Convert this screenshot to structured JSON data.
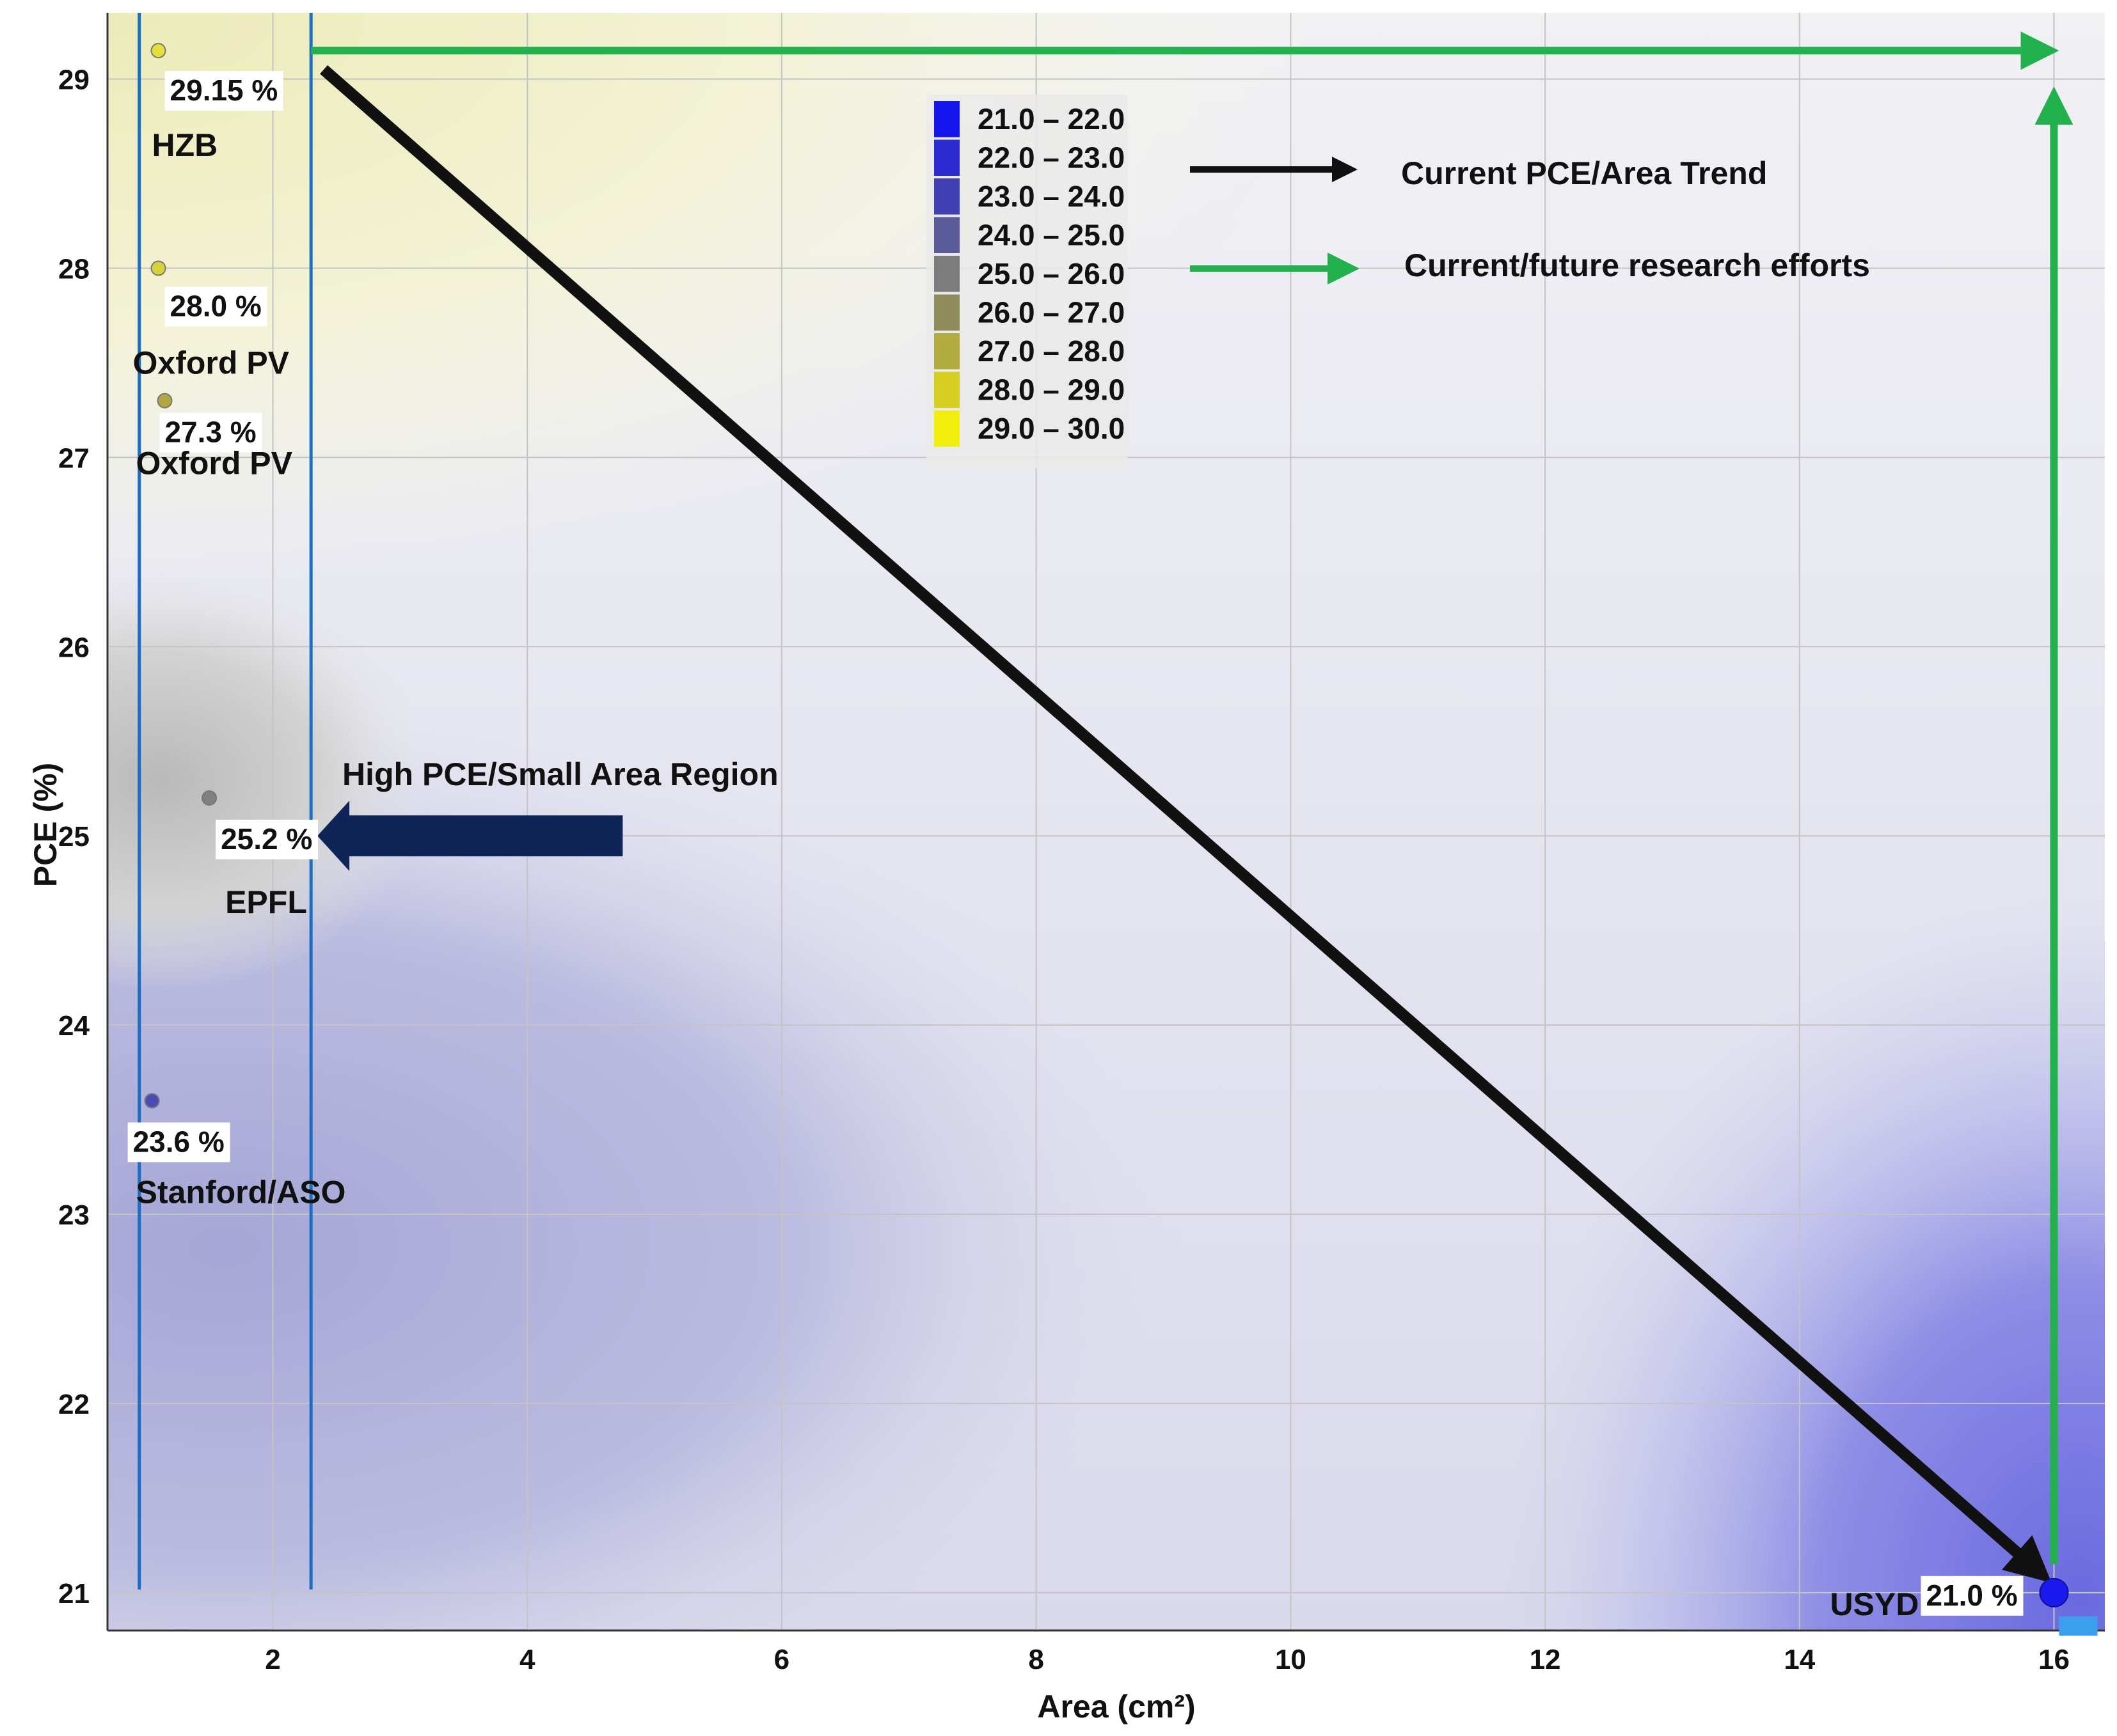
{
  "chart_data": {
    "type": "scatter",
    "title": "",
    "xlabel": "Area (cm²)",
    "ylabel": "PCE (%)",
    "xlim": [
      0.7,
      16.4
    ],
    "ylim": [
      20.8,
      29.35
    ],
    "xticks": [
      2,
      4,
      6,
      8,
      10,
      12,
      14,
      16
    ],
    "yticks": [
      21,
      22,
      23,
      24,
      25,
      26,
      27,
      28,
      29
    ],
    "grid": true,
    "points": [
      {
        "x": 1.1,
        "y": 29.15,
        "value_label": "29.15 %",
        "name": "HZB",
        "color": "#e6df3a"
      },
      {
        "x": 1.1,
        "y": 28.0,
        "value_label": "28.0 %",
        "name": "Oxford PV",
        "color": "#d8d23a"
      },
      {
        "x": 1.15,
        "y": 27.3,
        "value_label": "27.3 %",
        "name": "Oxford PV",
        "color": "#b0a742"
      },
      {
        "x": 1.5,
        "y": 25.2,
        "value_label": "25.2 %",
        "name": "EPFL",
        "color": "#808080"
      },
      {
        "x": 1.05,
        "y": 23.6,
        "value_label": "23.6 %",
        "name": "Stanford/ASO",
        "color": "#4b4bb8"
      },
      {
        "x": 16.0,
        "y": 21.0,
        "value_label": "21.0 %",
        "name": "USYD",
        "color": "#1a1aee"
      }
    ],
    "legend": {
      "placement": "top-center",
      "entries": [
        {
          "label": "21.0 – 22.0",
          "color": "#1515ee"
        },
        {
          "label": "22.0 – 23.0",
          "color": "#2b2bcf"
        },
        {
          "label": "23.0 – 24.0",
          "color": "#4040b4"
        },
        {
          "label": "24.0 – 25.0",
          "color": "#5c5c9a"
        },
        {
          "label": "25.0 – 26.0",
          "color": "#7c7c7c"
        },
        {
          "label": "26.0 – 27.0",
          "color": "#8e8c5c"
        },
        {
          "label": "27.0 – 28.0",
          "color": "#b2ad3e"
        },
        {
          "label": "28.0 – 29.0",
          "color": "#d6cf22"
        },
        {
          "label": "29.0 – 30.0",
          "color": "#f2ee0c"
        }
      ]
    },
    "annotations": {
      "trend_label": "Current PCE/Area Trend",
      "research_label": "Current/future research efforts",
      "region_label": "High PCE/Small Area Region",
      "trend_arrow": {
        "from": [
          2.4,
          29.05
        ],
        "to": [
          15.9,
          21.1
        ]
      },
      "research_arrow_h": {
        "from": [
          2.3,
          29.15
        ],
        "to": [
          16.0,
          29.15
        ]
      },
      "research_arrow_v": {
        "from": [
          16.0,
          21.15
        ],
        "to": [
          16.0,
          28.9
        ]
      },
      "region_arrow": {
        "from": [
          4.75,
          25.0
        ],
        "to": [
          2.35,
          25.0
        ]
      },
      "region_bounds_x": [
        0.95,
        2.3
      ],
      "region_bounds_y": [
        21.0,
        29.35
      ]
    },
    "colors": {
      "trend_arrow": "#111111",
      "research_arrow": "#22b14c",
      "region_arrow": "#0f2557",
      "region_lines": "#1a6fc4"
    }
  }
}
